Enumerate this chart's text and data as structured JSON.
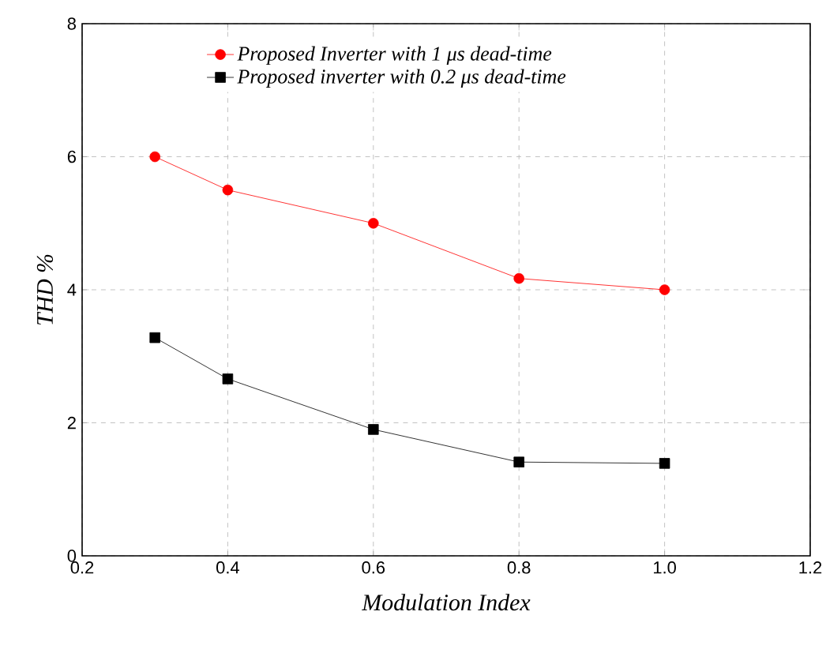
{
  "chart_data": {
    "type": "line",
    "xlabel": "Modulation Index",
    "ylabel": "THD %",
    "x": [
      0.3,
      0.4,
      0.6,
      0.8,
      1.0
    ],
    "series": [
      {
        "name": "Proposed Inverter with 1 μs dead-time",
        "color": "#ff0000",
        "marker": "circle",
        "values": [
          6.0,
          5.5,
          5.0,
          4.17,
          4.0
        ]
      },
      {
        "name": "Proposed inverter with 0.2 μs dead-time",
        "color": "#000000",
        "marker": "square",
        "values": [
          3.28,
          2.66,
          1.9,
          1.41,
          1.39
        ]
      }
    ],
    "xlim": [
      0.2,
      1.2
    ],
    "ylim": [
      0,
      8
    ],
    "xticks": [
      0.2,
      0.4,
      0.6,
      0.8,
      {
        "value": 1.0,
        "label": "1.0"
      },
      1.2
    ],
    "yticks": [
      0,
      2,
      4,
      6,
      8
    ],
    "grid": true,
    "legend": "top",
    "line_style": "solid"
  }
}
